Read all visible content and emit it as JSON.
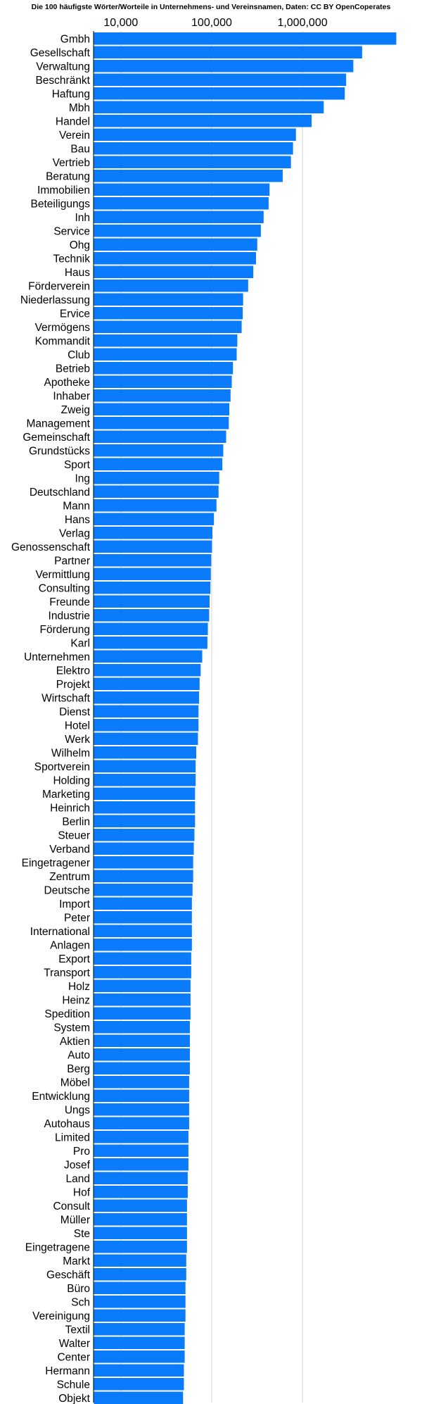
{
  "chart_data": {
    "type": "bar",
    "orientation": "horizontal",
    "title": "Die 100 häufigste Wörter/Worteile in Unternehmens- und Vereinsnamen, Daten: CC BY OpenCoperates",
    "xlabel": "",
    "ylabel": "",
    "x_scale": "log",
    "xlim": [
      5000,
      20000000
    ],
    "x_ticks": [
      {
        "value": 10000,
        "label": "10,000"
      },
      {
        "value": 100000,
        "label": "100,000"
      },
      {
        "value": 1000000,
        "label": "1,000,000"
      }
    ],
    "grid": true,
    "bar_color": "#0a7bfa",
    "categories": [
      "Gmbh",
      "Gesellschaft",
      "Verwaltung",
      "Beschränkt",
      "Haftung",
      "Mbh",
      "Handel",
      "Verein",
      "Bau",
      "Vertrieb",
      "Beratung",
      "Immobilien",
      "Beteiligungs",
      "Inh",
      "Service",
      "Ohg",
      "Technik",
      "Haus",
      "Förderverein",
      "Niederlassung",
      "Ervice",
      "Vermögens",
      "Kommandit",
      "Club",
      "Betrieb",
      "Apotheke",
      "Inhaber",
      "Zweig",
      "Management",
      "Gemeinschaft",
      "Grundstücks",
      "Sport",
      "Ing",
      "Deutschland",
      "Mann",
      "Hans",
      "Verlag",
      "Genossenschaft",
      "Partner",
      "Vermittlung",
      "Consulting",
      "Freunde",
      "Industrie",
      "Förderung",
      "Karl",
      "Unternehmen",
      "Elektro",
      "Projekt",
      "Wirtschaft",
      "Dienst",
      "Hotel",
      "Werk",
      "Wilhelm",
      "Sportverein",
      "Holding",
      "Marketing",
      "Heinrich",
      "Berlin",
      "Steuer",
      "Verband",
      "Eingetragener",
      "Zentrum",
      "Deutsche",
      "Import",
      "Peter",
      "International",
      "Anlagen",
      "Export",
      "Transport",
      "Holz",
      "Heinz",
      "Spedition",
      "System",
      "Aktien",
      "Auto",
      "Berg",
      "Möbel",
      "Entwicklung",
      "Ungs",
      "Autohaus",
      "Limited",
      "Pro",
      "Josef",
      "Land",
      "Hof",
      "Consult",
      "Müller",
      "Ste",
      "Eingetragene",
      "Markt",
      "Geschäft",
      "Büro",
      "Sch",
      "Vereinigung",
      "Textil",
      "Walter",
      "Center",
      "Hermann",
      "Schule",
      "Objekt"
    ],
    "values": [
      10700000,
      4500000,
      3600000,
      3000000,
      2900000,
      1700000,
      1250000,
      840000,
      780000,
      740000,
      600000,
      430000,
      420000,
      370000,
      345000,
      315000,
      305000,
      285000,
      250000,
      220000,
      218000,
      212000,
      190000,
      187000,
      170000,
      165000,
      160000,
      155000,
      153000,
      143000,
      133000,
      130000,
      120000,
      118000,
      112000,
      105000,
      101000,
      100000,
      98000,
      97000,
      96000,
      94000,
      93000,
      90000,
      89000,
      78000,
      75000,
      73000,
      72000,
      71000,
      71000,
      70000,
      67000,
      66000,
      66000,
      65000,
      65000,
      65000,
      64000,
      63000,
      62000,
      62000,
      61000,
      60000,
      60000,
      60000,
      60000,
      59000,
      59000,
      58000,
      58000,
      58000,
      57000,
      57000,
      57000,
      57000,
      56000,
      56000,
      56000,
      56000,
      55000,
      55000,
      55000,
      54000,
      54000,
      53000,
      53000,
      53000,
      53000,
      52000,
      52000,
      51000,
      51000,
      51000,
      50000,
      50000,
      50000,
      49000,
      49000,
      48000
    ]
  }
}
